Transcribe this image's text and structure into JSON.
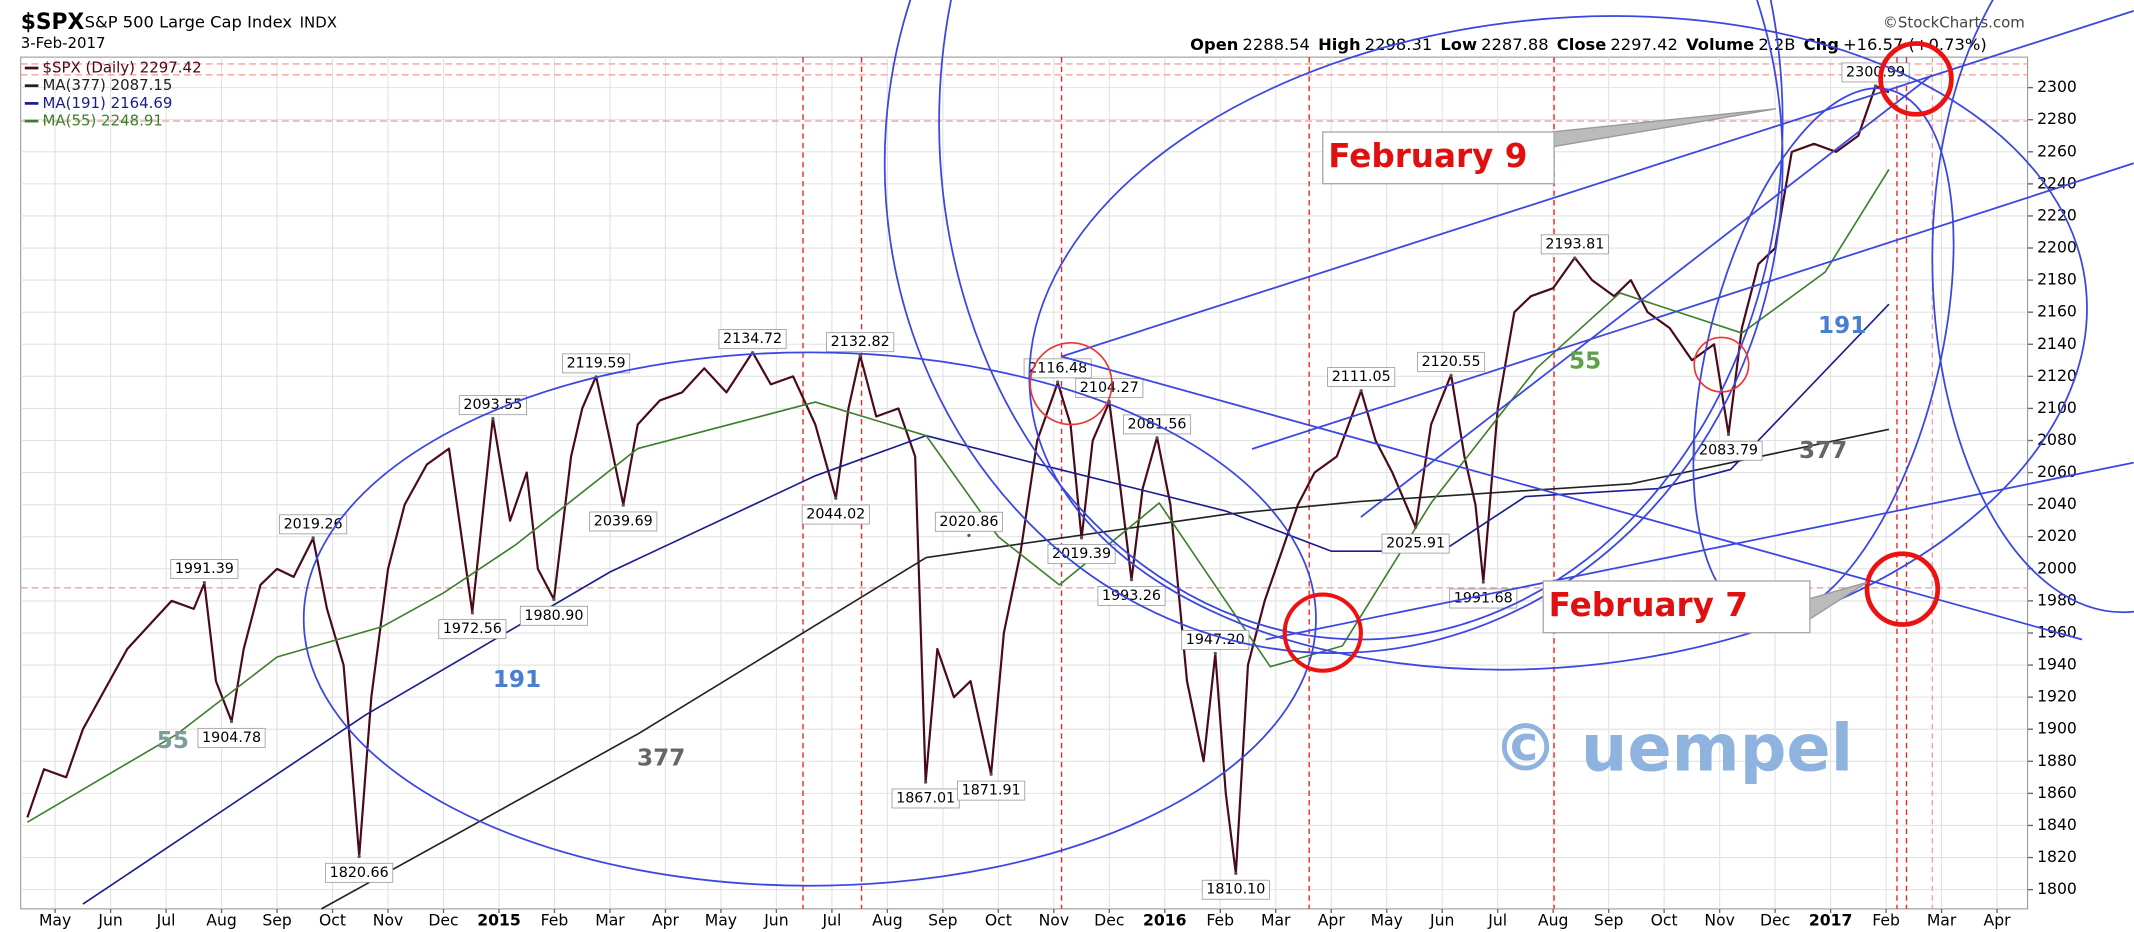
{
  "chart_data": {
    "type": "line",
    "title": "$SPX",
    "subtitle": "S&P 500 Large Cap Index",
    "exchange": "INDX",
    "date": "3-Feb-2017",
    "source": "©StockCharts.com",
    "quote": [
      {
        "name": "Open",
        "value": "2288.54"
      },
      {
        "name": "High",
        "value": "2298.31"
      },
      {
        "name": "Low",
        "value": "2287.88"
      },
      {
        "name": "Close",
        "value": "2297.42"
      },
      {
        "name": "Volume",
        "value": "2.2B"
      },
      {
        "name": "Chg",
        "value": "+16.57 (+0.73%)"
      }
    ],
    "xlim": [
      -0.12,
      36.05
    ],
    "ylim": [
      1788,
      2319
    ],
    "grid": true,
    "xticks": [
      {
        "value": 0.5,
        "label": "May"
      },
      {
        "value": 1.5,
        "label": "Jun"
      },
      {
        "value": 2.5,
        "label": "Jul"
      },
      {
        "value": 3.5,
        "label": "Aug"
      },
      {
        "value": 4.5,
        "label": "Sep"
      },
      {
        "value": 5.5,
        "label": "Oct"
      },
      {
        "value": 6.5,
        "label": "Nov"
      },
      {
        "value": 7.5,
        "label": "Dec"
      },
      {
        "value": 8.5,
        "label": "2015"
      },
      {
        "value": 9.5,
        "label": "Feb"
      },
      {
        "value": 10.5,
        "label": "Mar"
      },
      {
        "value": 11.5,
        "label": "Apr"
      },
      {
        "value": 12.5,
        "label": "May"
      },
      {
        "value": 13.5,
        "label": "Jun"
      },
      {
        "value": 14.5,
        "label": "Jul"
      },
      {
        "value": 15.5,
        "label": "Aug"
      },
      {
        "value": 16.5,
        "label": "Sep"
      },
      {
        "value": 17.5,
        "label": "Oct"
      },
      {
        "value": 18.5,
        "label": "Nov"
      },
      {
        "value": 19.5,
        "label": "Dec"
      },
      {
        "value": 20.5,
        "label": "2016"
      },
      {
        "value": 21.5,
        "label": "Feb"
      },
      {
        "value": 22.5,
        "label": "Mar"
      },
      {
        "value": 23.5,
        "label": "Apr"
      },
      {
        "value": 24.5,
        "label": "May"
      },
      {
        "value": 25.5,
        "label": "Jun"
      },
      {
        "value": 26.5,
        "label": "Jul"
      },
      {
        "value": 27.5,
        "label": "Aug"
      },
      {
        "value": 28.5,
        "label": "Sep"
      },
      {
        "value": 29.5,
        "label": "Oct"
      },
      {
        "value": 30.5,
        "label": "Nov"
      },
      {
        "value": 31.5,
        "label": "Dec"
      },
      {
        "value": 32.5,
        "label": "2017"
      },
      {
        "value": 33.5,
        "label": "Feb"
      },
      {
        "value": 34.5,
        "label": "Mar"
      },
      {
        "value": 35.5,
        "label": "Apr"
      }
    ],
    "yticks": [
      1800,
      1820,
      1840,
      1860,
      1880,
      1900,
      1920,
      1940,
      1960,
      1980,
      2000,
      2020,
      2040,
      2060,
      2080,
      2100,
      2120,
      2140,
      2160,
      2180,
      2200,
      2220,
      2240,
      2260,
      2280,
      2300
    ],
    "series": [
      {
        "name": "$SPX (Daily) 2297.42",
        "color": "#4a0a18",
        "x": [
          0,
          0.3,
          0.7,
          1.0,
          1.4,
          1.8,
          2.2,
          2.6,
          3.0,
          3.19,
          3.4,
          3.68,
          3.9,
          4.2,
          4.5,
          4.8,
          5.15,
          5.4,
          5.7,
          5.98,
          6.2,
          6.5,
          6.8,
          7.2,
          7.6,
          8.02,
          8.39,
          8.7,
          9.0,
          9.2,
          9.49,
          9.8,
          10.0,
          10.25,
          10.5,
          10.74,
          11.0,
          11.4,
          11.8,
          12.2,
          12.6,
          13.07,
          13.4,
          13.8,
          14.2,
          14.57,
          14.8,
          15.01,
          15.3,
          15.7,
          16.0,
          16.19,
          16.4,
          16.7,
          17.0,
          17.37,
          17.6,
          17.9,
          18.2,
          18.57,
          18.8,
          19.0,
          19.2,
          19.5,
          19.7,
          19.9,
          20.1,
          20.36,
          20.6,
          20.9,
          21.2,
          21.41,
          21.6,
          21.78,
          22.0,
          22.3,
          22.6,
          22.9,
          23.2,
          23.6,
          24.04,
          24.3,
          24.6,
          25.02,
          25.3,
          25.66,
          25.9,
          26.1,
          26.24,
          26.5,
          26.8,
          27.1,
          27.5,
          27.89,
          28.2,
          28.6,
          28.9,
          29.2,
          29.6,
          30.0,
          30.4,
          30.66,
          30.9,
          31.2,
          31.5,
          31.8,
          32.2,
          32.6,
          33.0,
          33.31,
          33.55
        ],
        "values": [
          1845,
          1875,
          1870,
          1900,
          1925,
          1950,
          1965,
          1980,
          1975,
          1991,
          1930,
          1905,
          1950,
          1990,
          2000,
          1995,
          2019,
          1975,
          1940,
          1821,
          1920,
          2000,
          2040,
          2065,
          2075,
          1973,
          2094,
          2030,
          2060,
          2000,
          1981,
          2070,
          2100,
          2120,
          2080,
          2040,
          2090,
          2105,
          2110,
          2125,
          2110,
          2135,
          2115,
          2120,
          2090,
          2044,
          2100,
          2133,
          2095,
          2100,
          2070,
          1867,
          1950,
          1920,
          1930,
          1872,
          1960,
          2010,
          2080,
          2116,
          2090,
          2019,
          2080,
          2104,
          2050,
          1993,
          2050,
          2082,
          2040,
          1930,
          1880,
          1947,
          1860,
          1810,
          1940,
          1980,
          2010,
          2040,
          2060,
          2070,
          2111,
          2080,
          2060,
          2026,
          2090,
          2121,
          2070,
          2040,
          1992,
          2100,
          2160,
          2170,
          2175,
          2194,
          2180,
          2170,
          2180,
          2160,
          2150,
          2130,
          2140,
          2084,
          2150,
          2190,
          2200,
          2260,
          2265,
          2260,
          2270,
          2301,
          2297
        ]
      },
      {
        "name": "MA(377) 2087.15",
        "color": "#222222",
        "x": [
          5.3,
          11,
          16.2,
          21.6,
          24,
          28.9,
          33.55
        ],
        "values": [
          1788,
          1897,
          2007,
          2034,
          2042,
          2053,
          2087
        ]
      },
      {
        "name": "MA(191) 2164.69",
        "color": "#1c1c8c",
        "x": [
          1,
          6.1,
          10.5,
          14.2,
          16.2,
          18.6,
          21.6,
          23.5,
          25.5,
          27,
          29.4,
          30.7,
          33.55
        ],
        "values": [
          1791,
          1909,
          1998,
          2058,
          2083,
          2062,
          2036,
          2011,
          2011,
          2045,
          2050,
          2062,
          2165
        ]
      },
      {
        "name": "MA(55) 2248.91",
        "color": "#3d7f2e",
        "x": [
          0,
          2.7,
          4.5,
          6.4,
          7.5,
          8.8,
          11,
          14.2,
          16.2,
          17.5,
          18.6,
          20.4,
          22.4,
          23.7,
          25.3,
          27.2,
          28.7,
          30.9,
          32.4,
          33.55
        ],
        "values": [
          1842,
          1897,
          1945,
          1964,
          1985,
          2015,
          2075,
          2104,
          2083,
          2020,
          1990,
          2041,
          1939,
          1952,
          2041,
          2125,
          2172,
          2147,
          2185,
          2249
        ]
      }
    ],
    "annotations": [
      {
        "x": 3.19,
        "value": 1991.39,
        "label": "1991.39",
        "position": "above"
      },
      {
        "x": 3.68,
        "value": 1904.78,
        "label": "1904.78",
        "position": "below"
      },
      {
        "x": 5.15,
        "value": 2019.26,
        "label": "2019.26",
        "position": "above"
      },
      {
        "x": 5.98,
        "value": 1820.66,
        "label": "1820.66",
        "position": "below"
      },
      {
        "x": 8.02,
        "value": 1972.56,
        "label": "1972.56",
        "position": "below"
      },
      {
        "x": 8.39,
        "value": 2093.55,
        "label": "2093.55",
        "position": "above"
      },
      {
        "x": 9.49,
        "value": 1980.9,
        "label": "1980.90",
        "position": "below"
      },
      {
        "x": 10.25,
        "value": 2119.59,
        "label": "2119.59",
        "position": "above"
      },
      {
        "x": 10.74,
        "value": 2039.69,
        "label": "2039.69",
        "position": "below"
      },
      {
        "x": 13.07,
        "value": 2134.72,
        "label": "2134.72",
        "position": "above"
      },
      {
        "x": 14.57,
        "value": 2044.02,
        "label": "2044.02",
        "position": "below"
      },
      {
        "x": 15.01,
        "value": 2132.82,
        "label": "2132.82",
        "position": "above"
      },
      {
        "x": 16.97,
        "value": 2020.86,
        "label": "2020.86",
        "position": "above"
      },
      {
        "x": 16.19,
        "value": 1867.01,
        "label": "1867.01",
        "position": "below"
      },
      {
        "x": 17.37,
        "value": 1871.91,
        "label": "1871.91",
        "position": "below"
      },
      {
        "x": 18.57,
        "value": 2116.48,
        "label": "2116.48",
        "position": "above"
      },
      {
        "x": 19.0,
        "value": 2019.39,
        "label": "2019.39",
        "position": "below"
      },
      {
        "x": 19.5,
        "value": 2104.27,
        "label": "2104.27",
        "position": "above"
      },
      {
        "x": 19.9,
        "value": 1993.26,
        "label": "1993.26",
        "position": "below"
      },
      {
        "x": 20.36,
        "value": 2081.56,
        "label": "2081.56",
        "position": "above"
      },
      {
        "x": 21.41,
        "value": 1947.2,
        "label": "1947.20",
        "position": "above"
      },
      {
        "x": 21.78,
        "value": 1810.1,
        "label": "1810.10",
        "position": "below"
      },
      {
        "x": 24.04,
        "value": 2111.05,
        "label": "2111.05",
        "position": "above"
      },
      {
        "x": 25.02,
        "value": 2025.91,
        "label": "2025.91",
        "position": "below"
      },
      {
        "x": 25.66,
        "value": 2120.55,
        "label": "2120.55",
        "position": "above"
      },
      {
        "x": 26.24,
        "value": 1991.68,
        "label": "1991.68",
        "position": "below"
      },
      {
        "x": 27.89,
        "value": 2193.81,
        "label": "2193.81",
        "position": "above"
      },
      {
        "x": 30.66,
        "value": 2083.79,
        "label": "2083.79",
        "position": "below"
      },
      {
        "x": 33.31,
        "value": 2300.99,
        "label": "2300.99",
        "position": "above"
      }
    ],
    "notes": [
      "February 9",
      "February 7",
      "55",
      "191",
      "377",
      "55",
      "191",
      "377",
      "© uempel"
    ]
  }
}
